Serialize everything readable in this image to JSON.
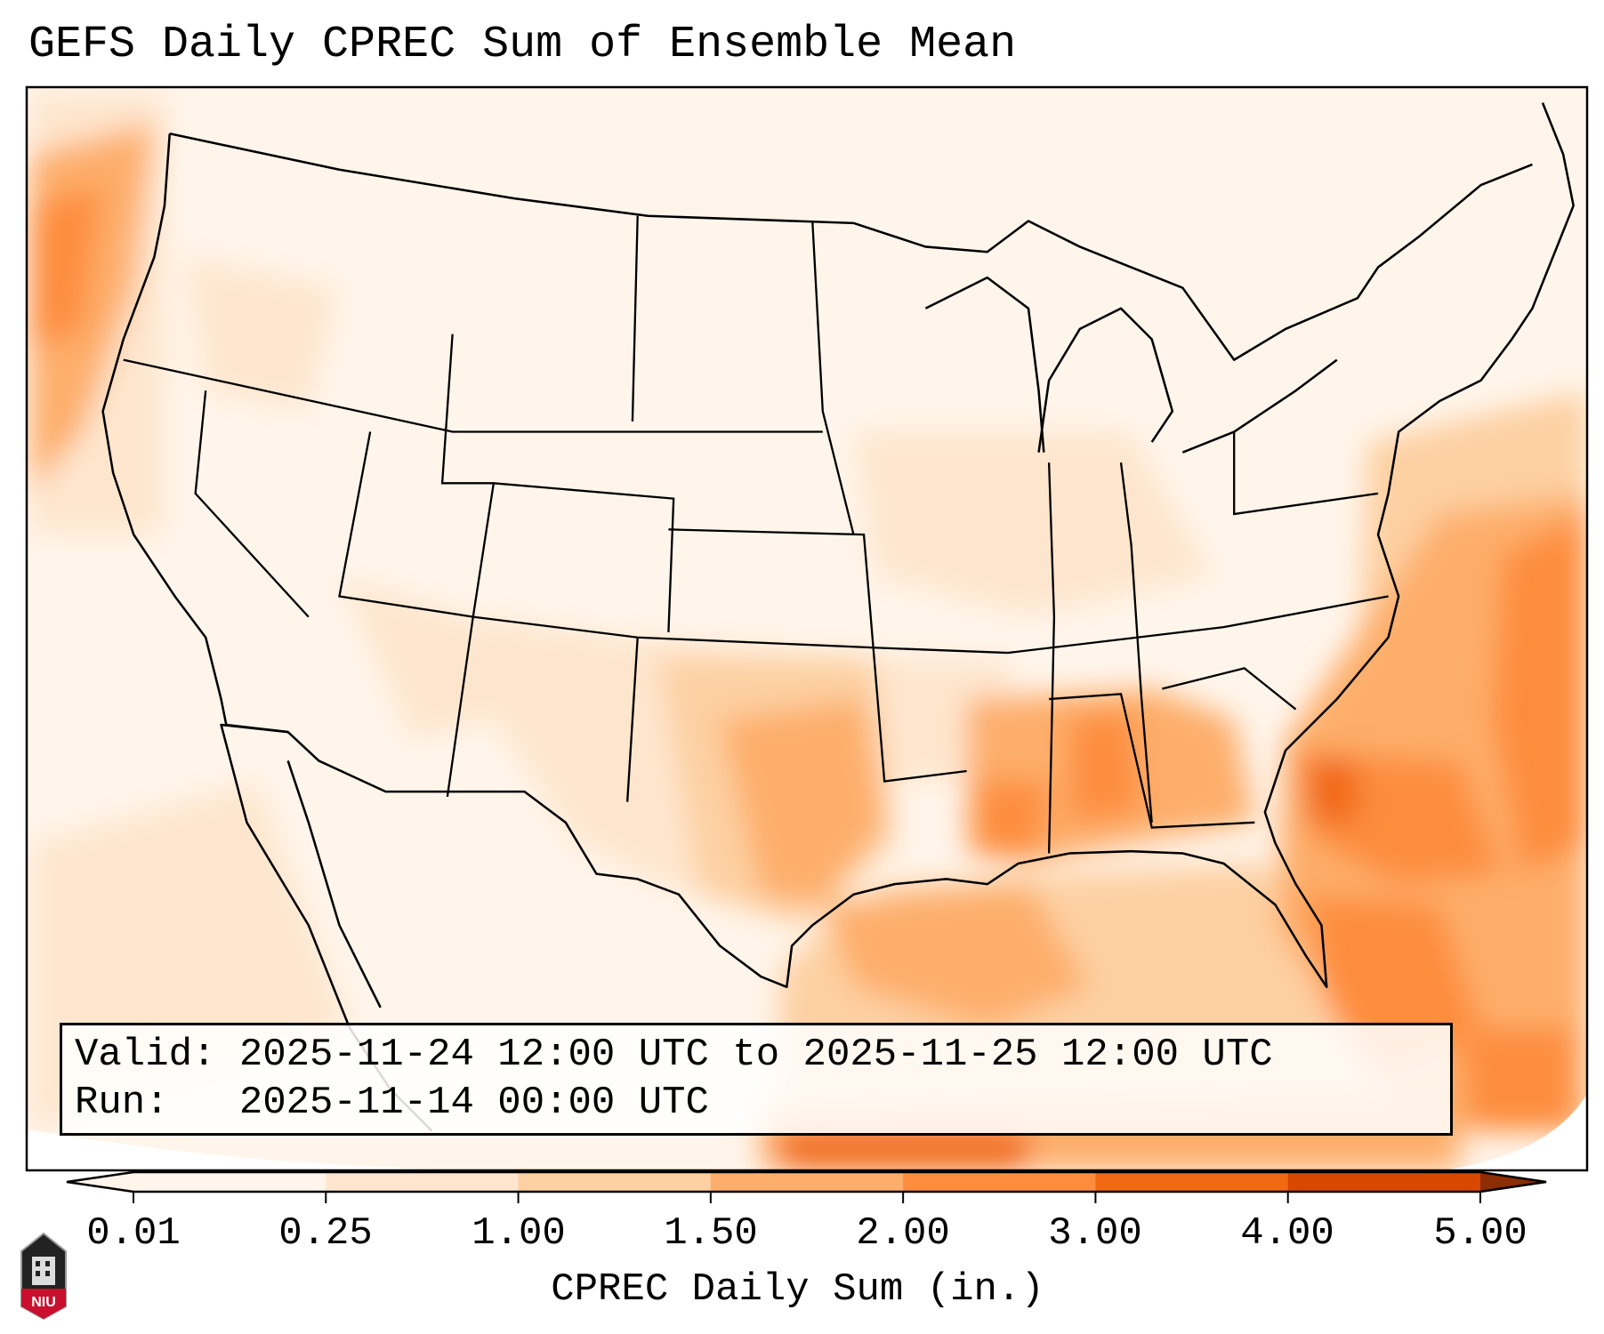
{
  "title": "GEFS Daily CPREC Sum of Ensemble Mean",
  "legend": {
    "valid_label": "Valid:",
    "valid_value": "2025-11-24 12:00 UTC to 2025-11-25 12:00 UTC",
    "run_label": "Run:",
    "run_value": "2025-11-14 00:00 UTC"
  },
  "colorbar": {
    "label": "CPREC Daily Sum (in.)",
    "ticks": [
      "0.01",
      "0.25",
      "1.00",
      "1.50",
      "2.00",
      "3.00",
      "4.00",
      "5.00"
    ],
    "colors": [
      "#fff5eb",
      "#fee6ce",
      "#fdd0a2",
      "#fdae6b",
      "#fd8d3c",
      "#f16913",
      "#d94801",
      "#8c2d04"
    ],
    "extend": "both"
  },
  "logo": {
    "text": "NIU"
  }
}
